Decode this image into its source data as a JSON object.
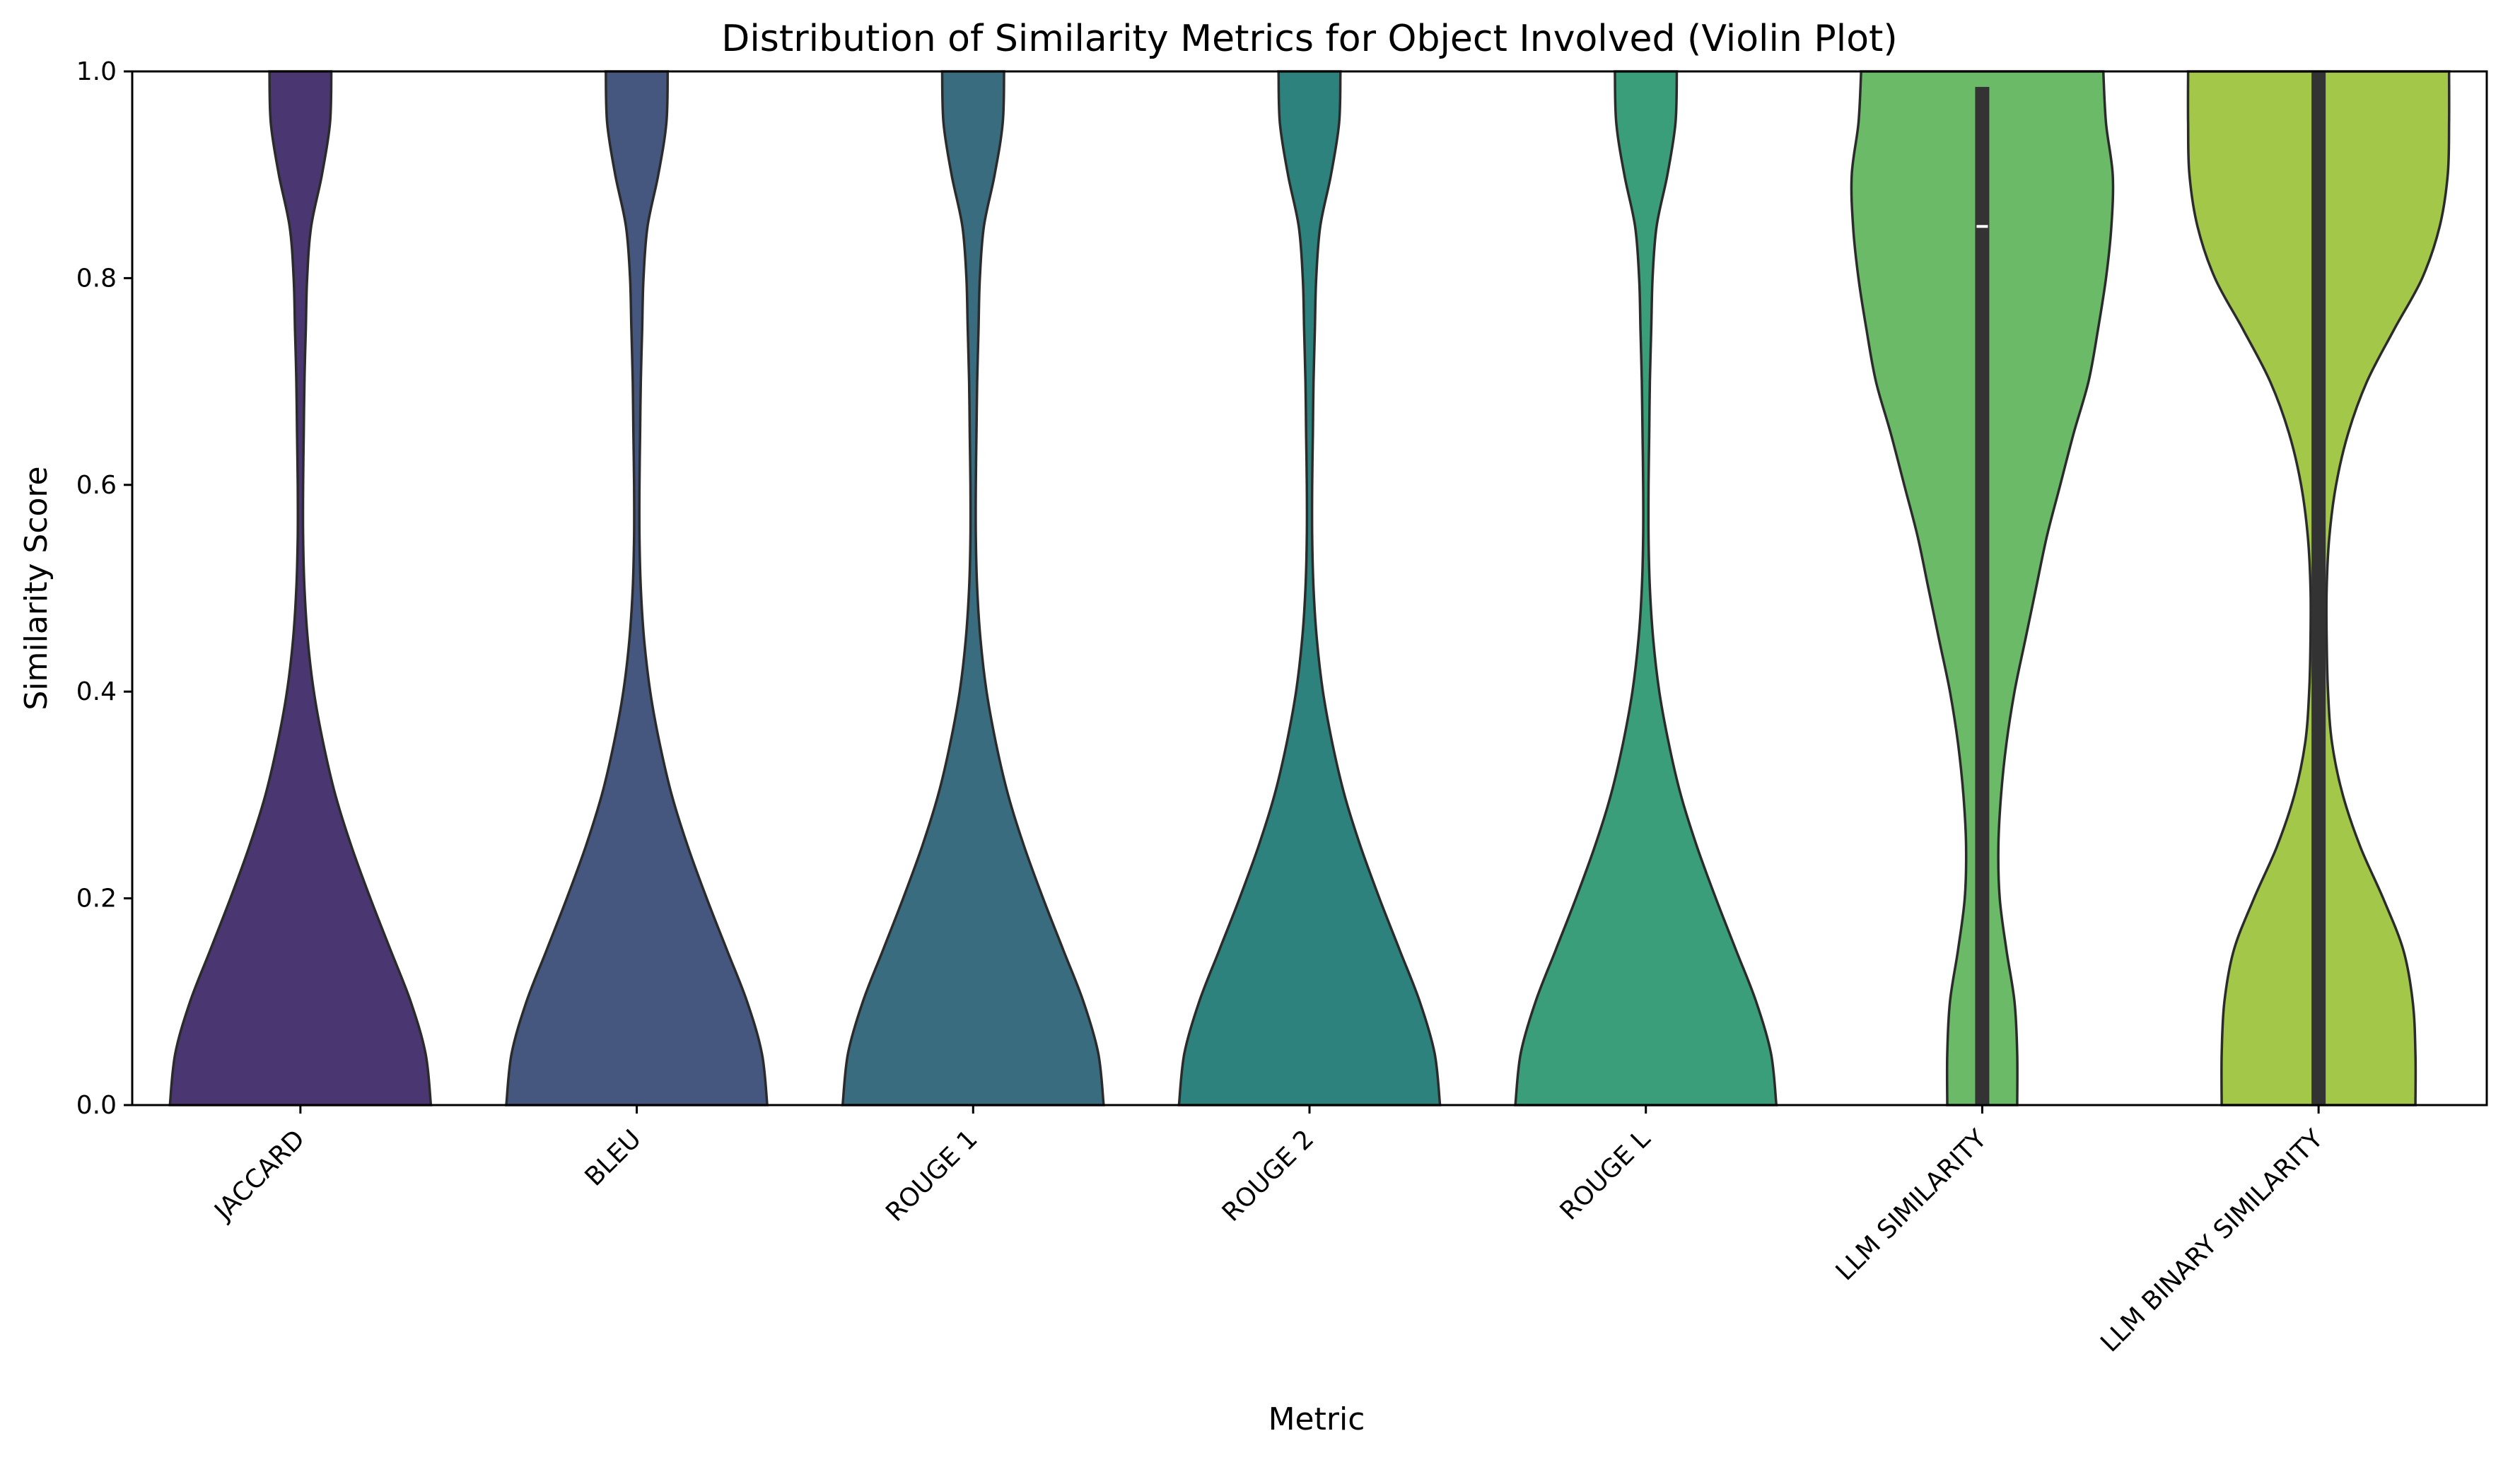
{
  "chart_data": {
    "type": "violin",
    "title": "Distribution of Similarity Metrics for Object Involved (Violin Plot)",
    "xlabel": "Metric",
    "ylabel": "Similarity Score",
    "ylim": [
      0,
      1
    ],
    "yticks": [
      "0.0",
      "0.2",
      "0.4",
      "0.6",
      "0.8",
      "1.0"
    ],
    "grid": false,
    "categories": [
      "JACCARD",
      "BLEU",
      "ROUGE 1",
      "ROUGE 2",
      "ROUGE L",
      "LLM SIMILARITY",
      "LLM BINARY SIMILARITY"
    ],
    "colors": [
      "#4a3670",
      "#45577f",
      "#3a6c80",
      "#2e827d",
      "#3b9e7a",
      "#6aba68",
      "#a2c749"
    ],
    "density_y": [
      0.0,
      0.05,
      0.1,
      0.15,
      0.2,
      0.25,
      0.3,
      0.35,
      0.4,
      0.45,
      0.5,
      0.55,
      0.6,
      0.65,
      0.7,
      0.75,
      0.8,
      0.85,
      0.9,
      0.95,
      1.0
    ],
    "violins": [
      {
        "name": "JACCARD",
        "halfwidth": [
          0.97,
          0.93,
          0.82,
          0.67,
          0.52,
          0.38,
          0.26,
          0.17,
          0.1,
          0.055,
          0.03,
          0.02,
          0.02,
          0.025,
          0.03,
          0.04,
          0.05,
          0.08,
          0.16,
          0.22,
          0.23
        ]
      },
      {
        "name": "BLEU",
        "halfwidth": [
          0.97,
          0.93,
          0.82,
          0.67,
          0.52,
          0.38,
          0.26,
          0.17,
          0.1,
          0.055,
          0.03,
          0.02,
          0.02,
          0.025,
          0.03,
          0.04,
          0.05,
          0.08,
          0.16,
          0.22,
          0.23
        ]
      },
      {
        "name": "ROUGE 1",
        "halfwidth": [
          0.97,
          0.93,
          0.82,
          0.67,
          0.52,
          0.38,
          0.26,
          0.17,
          0.1,
          0.055,
          0.03,
          0.02,
          0.02,
          0.025,
          0.03,
          0.04,
          0.05,
          0.08,
          0.16,
          0.22,
          0.23
        ]
      },
      {
        "name": "ROUGE 2",
        "halfwidth": [
          0.97,
          0.93,
          0.82,
          0.67,
          0.52,
          0.38,
          0.26,
          0.17,
          0.1,
          0.055,
          0.03,
          0.02,
          0.02,
          0.025,
          0.03,
          0.04,
          0.05,
          0.08,
          0.16,
          0.22,
          0.23
        ]
      },
      {
        "name": "ROUGE L",
        "halfwidth": [
          0.97,
          0.93,
          0.82,
          0.67,
          0.52,
          0.38,
          0.26,
          0.17,
          0.1,
          0.055,
          0.03,
          0.02,
          0.02,
          0.025,
          0.03,
          0.04,
          0.05,
          0.08,
          0.16,
          0.22,
          0.23
        ]
      },
      {
        "name": "LLM SIMILARITY",
        "halfwidth": [
          0.26,
          0.26,
          0.24,
          0.18,
          0.13,
          0.12,
          0.14,
          0.18,
          0.24,
          0.32,
          0.4,
          0.48,
          0.58,
          0.68,
          0.79,
          0.86,
          0.92,
          0.96,
          0.97,
          0.92,
          0.9
        ]
      },
      {
        "name": "LLM BINARY SIMILARITY",
        "halfwidth": [
          0.72,
          0.72,
          0.7,
          0.63,
          0.48,
          0.31,
          0.18,
          0.1,
          0.07,
          0.06,
          0.06,
          0.08,
          0.13,
          0.22,
          0.36,
          0.56,
          0.77,
          0.9,
          0.96,
          0.97,
          0.97
        ]
      }
    ],
    "boxes": [
      {
        "name": "LLM SIMILARITY",
        "q1": 0.0,
        "median": 0.85,
        "q3": 0.985
      },
      {
        "name": "LLM BINARY SIMILARITY",
        "q1": 0.0,
        "median": 1.0,
        "q3": 1.0
      }
    ]
  }
}
